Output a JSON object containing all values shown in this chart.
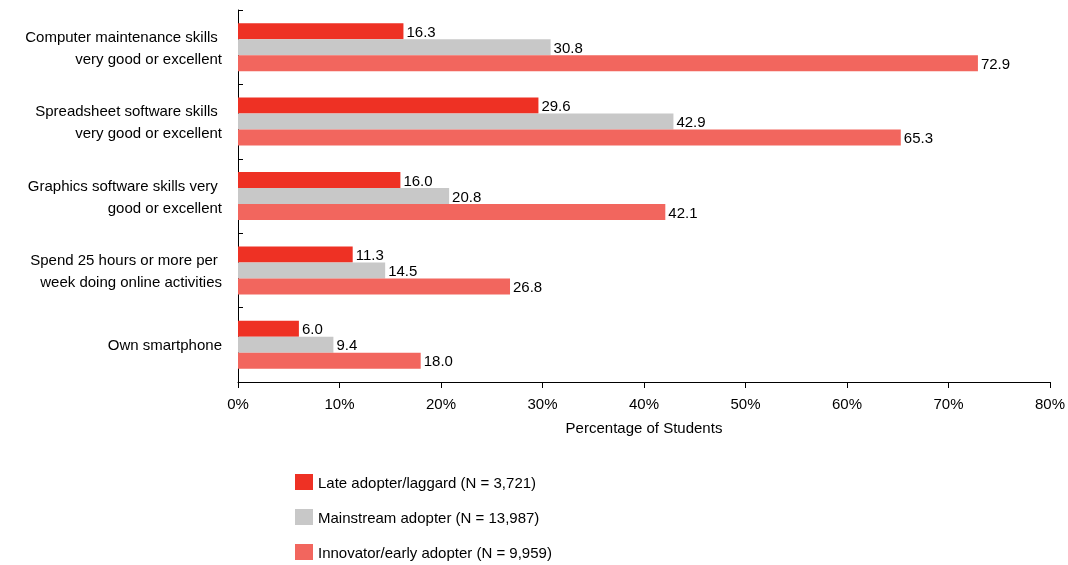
{
  "chart_data": {
    "type": "bar",
    "orientation": "horizontal",
    "xlabel": "Percentage of Students",
    "categories": [
      "Computer maintenance skills very good or excellent",
      "Spreadsheet software skills very good or excellent",
      "Graphics software skills very good or excellent",
      "Spend 25 hours or more per week doing online activities",
      "Own smartphone"
    ],
    "series": [
      {
        "name": "Late adopter/laggard (N = 3,721)",
        "color": "#ee3124",
        "values": [
          16.3,
          29.6,
          16.0,
          11.3,
          6.0
        ],
        "value_labels": [
          "16.3",
          "29.6",
          "16.0",
          "11.3",
          "6.0"
        ]
      },
      {
        "name": "Mainstream adopter (N = 13,987)",
        "color": "#c8c8c8",
        "values": [
          30.8,
          42.9,
          20.8,
          14.5,
          9.4
        ],
        "value_labels": [
          "30.8",
          "42.9",
          "20.8",
          "14.5",
          "9.4"
        ]
      },
      {
        "name": "Innovator/early adopter (N = 9,959)",
        "color": "#f2665e",
        "values": [
          72.9,
          65.3,
          42.1,
          26.8,
          18.0
        ],
        "value_labels": [
          "72.9",
          "65.3",
          "42.1",
          "26.8",
          "18.0"
        ]
      }
    ],
    "xlim": [
      0,
      80
    ],
    "xticks": [
      {
        "value": 0,
        "label": "0%"
      },
      {
        "value": 10,
        "label": "10%"
      },
      {
        "value": 20,
        "label": "20%"
      },
      {
        "value": 30,
        "label": "30%"
      },
      {
        "value": 40,
        "label": "40%"
      },
      {
        "value": 50,
        "label": "50%"
      },
      {
        "value": 60,
        "label": "60%"
      },
      {
        "value": 70,
        "label": "70%"
      },
      {
        "value": 80,
        "label": "80%"
      }
    ],
    "grid": false,
    "legend": "bottom"
  }
}
